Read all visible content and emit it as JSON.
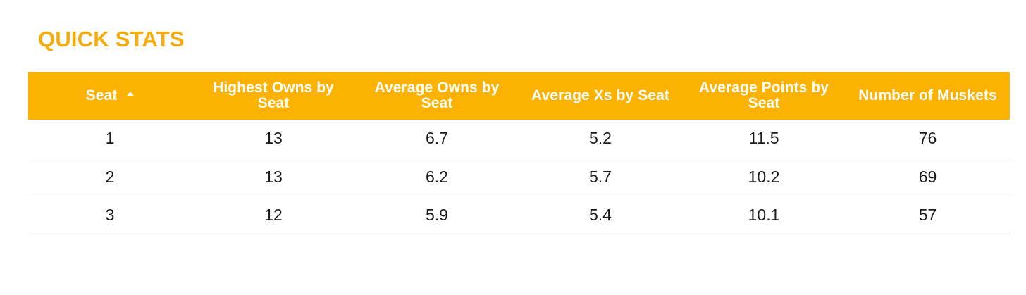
{
  "title": "QUICK STATS",
  "accent_color": "#fbb203",
  "title_color": "#f7ab0a",
  "table": {
    "sort": {
      "column": "Seat",
      "direction": "ascending",
      "icon": "sort-ascending-caret-icon"
    },
    "headers": [
      "Seat",
      "Highest Owns by Seat",
      "Average Owns by Seat",
      "Average Xs by Seat",
      "Average Points by Seat",
      "Number of Muskets"
    ],
    "rows": [
      [
        "1",
        "13",
        "6.7",
        "5.2",
        "11.5",
        "76"
      ],
      [
        "2",
        "13",
        "6.2",
        "5.7",
        "10.2",
        "69"
      ],
      [
        "3",
        "12",
        "5.9",
        "5.4",
        "10.1",
        "57"
      ]
    ]
  }
}
